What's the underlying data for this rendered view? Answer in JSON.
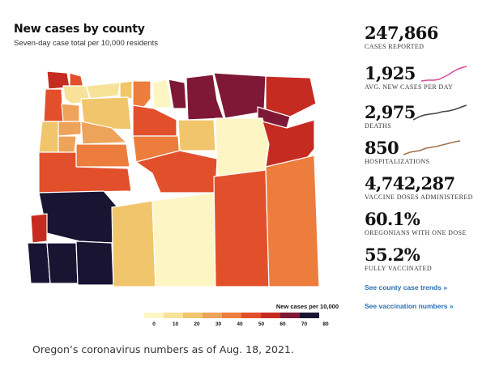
{
  "map": {
    "title": "New cases by county",
    "subtitle": "Seven-day case total per 10,000 residents",
    "legend_title": "New cases per 10,000",
    "legend_ticks": [
      "0",
      "10",
      "20",
      "30",
      "40",
      "50",
      "60",
      "70",
      "80"
    ],
    "legend_colors": [
      "#fdf5c4",
      "#f8e29a",
      "#f1c56b",
      "#eda35a",
      "#ec7d3d",
      "#e2502b",
      "#c62b22",
      "#7e1836",
      "#1a1433"
    ]
  },
  "stats": [
    {
      "value": "247,866",
      "label": "CASES REPORTED"
    },
    {
      "value": "1,925",
      "label": "AVG. NEW CASES PER DAY",
      "spark_color": "#d84a9a"
    },
    {
      "value": "2,975",
      "label": "DEATHS",
      "spark_color": "#444444"
    },
    {
      "value": "850",
      "label": "HOSPITALIZATIONS",
      "spark_color": "#a0704a"
    },
    {
      "value": "4,742,287",
      "label": "VACCINE DOSES ADMINISTERED"
    },
    {
      "value": "60.1%",
      "label": "OREGONIANS WITH ONE DOSE"
    },
    {
      "value": "55.2%",
      "label": "FULLY VACCINATED"
    }
  ],
  "links": {
    "county_trends": "See county case trends »",
    "vaccination": "See vaccination numbers »"
  },
  "caption": "Oregon’s coronavirus numbers as of Aug. 18, 2021."
}
